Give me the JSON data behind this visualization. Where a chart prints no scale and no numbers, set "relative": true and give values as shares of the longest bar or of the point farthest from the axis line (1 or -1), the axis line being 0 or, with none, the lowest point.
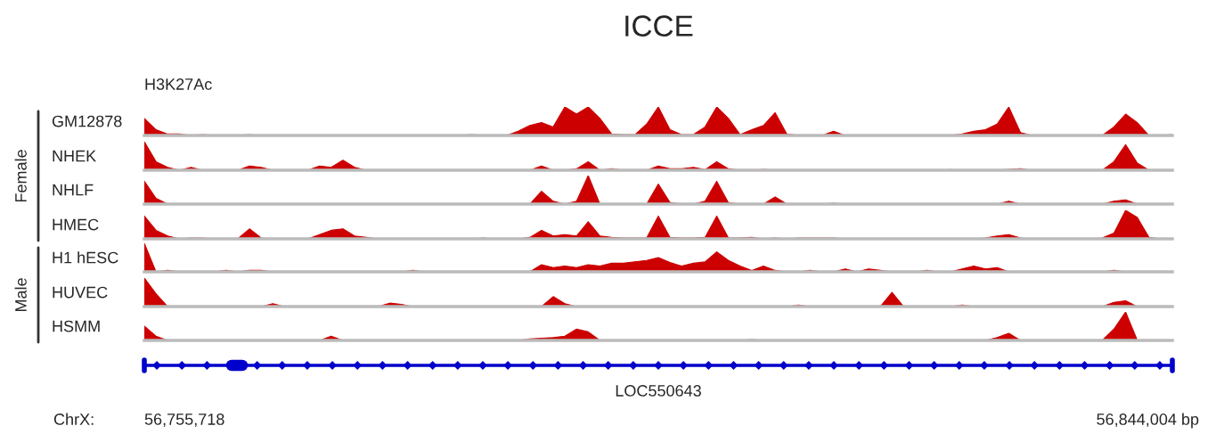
{
  "chart_data": [
    {
      "type": "area",
      "title": "ICCE",
      "subtitle": "H3K27Ac",
      "annotations": [
        "Female"
      ],
      "relative": true,
      "categories": [
        null,
        null,
        null,
        null,
        null,
        null,
        null,
        null,
        null,
        null,
        null,
        null,
        null,
        null,
        null,
        null,
        null,
        null,
        null,
        null,
        null,
        null,
        null,
        null,
        null,
        null,
        null,
        null,
        null,
        null,
        null,
        null,
        null,
        null,
        null,
        null,
        null,
        null,
        null,
        null,
        null,
        null,
        null,
        null,
        null,
        null,
        null,
        null,
        null,
        null,
        null,
        null,
        null,
        null,
        null,
        null,
        null,
        null,
        null,
        null,
        null,
        null,
        null,
        null,
        null,
        null,
        null,
        null,
        null,
        null,
        null,
        null,
        null,
        null,
        null,
        null,
        null,
        null,
        null,
        null,
        null,
        null,
        null,
        null,
        null,
        null,
        null,
        null,
        null
      ],
      "series": [
        {
          "name": "GM12878",
          "color": "#cc0000",
          "values": [
            0.6,
            0.2,
            0.05,
            0.05,
            0,
            0.03,
            0,
            0,
            0,
            0.03,
            0,
            0,
            0,
            0,
            0,
            0,
            0,
            0,
            0,
            0,
            0,
            0,
            0,
            0,
            0,
            0,
            0,
            0,
            0.03,
            0,
            0,
            0,
            0.15,
            0.35,
            0.45,
            0.3,
            1.0,
            0.75,
            1.0,
            0.6,
            0.05,
            0.03,
            0.03,
            0.4,
            1.0,
            0.2,
            0.03,
            0.03,
            0.3,
            1.0,
            0.6,
            0.03,
            0.2,
            0.35,
            0.8,
            0.05,
            0,
            0,
            0,
            0.15,
            0,
            0,
            0,
            0,
            0,
            0,
            0,
            0,
            0,
            0,
            0.05,
            0.15,
            0.2,
            0.4,
            1.0,
            0.1,
            0,
            0,
            0,
            0,
            0,
            0,
            0,
            0.3,
            0.75,
            0.45,
            0,
            0,
            0.03
          ]
        }
      ]
    },
    {
      "type": "area",
      "relative": true,
      "categories": [
        null,
        null,
        null,
        null,
        null,
        null,
        null,
        null,
        null,
        null,
        null,
        null,
        null,
        null,
        null,
        null,
        null,
        null,
        null,
        null,
        null,
        null,
        null,
        null,
        null,
        null,
        null,
        null,
        null,
        null,
        null,
        null,
        null,
        null,
        null,
        null,
        null,
        null,
        null,
        null,
        null,
        null,
        null,
        null,
        null,
        null,
        null,
        null,
        null,
        null,
        null,
        null,
        null,
        null,
        null,
        null,
        null,
        null,
        null,
        null,
        null,
        null,
        null,
        null,
        null,
        null,
        null,
        null,
        null,
        null,
        null,
        null,
        null,
        null,
        null,
        null,
        null,
        null,
        null,
        null,
        null,
        null,
        null,
        null,
        null,
        null,
        null,
        null,
        null
      ],
      "series": [
        {
          "name": "NHEK",
          "color": "#cc0000",
          "values": [
            1.0,
            0.3,
            0.1,
            0,
            0.1,
            0,
            0,
            0,
            0,
            0.15,
            0.1,
            0,
            0,
            0,
            0,
            0.15,
            0.1,
            0.35,
            0.1,
            0,
            0,
            0,
            0,
            0,
            0,
            0,
            0,
            0,
            0,
            0,
            0,
            0,
            0,
            0,
            0.15,
            0,
            0,
            0.05,
            0.3,
            0,
            0.05,
            0,
            0,
            0,
            0.15,
            0.05,
            0.05,
            0.1,
            0.02,
            0.3,
            0.05,
            0,
            0,
            0.03,
            0,
            0,
            0,
            0,
            0,
            0,
            0,
            0,
            0,
            0,
            0,
            0,
            0,
            0,
            0,
            0.02,
            0,
            0,
            0,
            0,
            0.03,
            0.05,
            0,
            0,
            0,
            0,
            0,
            0,
            0,
            0.3,
            0.9,
            0.25,
            0,
            0,
            0
          ]
        }
      ]
    },
    {
      "type": "area",
      "relative": true,
      "categories": [
        null,
        null,
        null,
        null,
        null,
        null,
        null,
        null,
        null,
        null,
        null,
        null,
        null,
        null,
        null,
        null,
        null,
        null,
        null,
        null,
        null,
        null,
        null,
        null,
        null,
        null,
        null,
        null,
        null,
        null,
        null,
        null,
        null,
        null,
        null,
        null,
        null,
        null,
        null,
        null,
        null,
        null,
        null,
        null,
        null,
        null,
        null,
        null,
        null,
        null,
        null,
        null,
        null,
        null,
        null,
        null,
        null,
        null,
        null,
        null,
        null,
        null,
        null,
        null,
        null,
        null,
        null,
        null,
        null,
        null,
        null,
        null,
        null,
        null,
        null,
        null,
        null,
        null,
        null,
        null,
        null,
        null,
        null,
        null,
        null,
        null,
        null,
        null,
        null
      ],
      "series": [
        {
          "name": "NHLF",
          "color": "#cc0000",
          "values": [
            0.8,
            0.2,
            0,
            0,
            0,
            0,
            0,
            0,
            0,
            0,
            0,
            0,
            0,
            0,
            0,
            0,
            0,
            0,
            0,
            0,
            0,
            0,
            0,
            0,
            0,
            0,
            0,
            0,
            0,
            0,
            0,
            0,
            0,
            0,
            0.45,
            0.1,
            0,
            0.1,
            1.0,
            0,
            0,
            0,
            0,
            0,
            0.7,
            0.05,
            0,
            0,
            0.1,
            0.8,
            0.05,
            0,
            0,
            0,
            0.25,
            0,
            0,
            0,
            0,
            0.03,
            0,
            0,
            0,
            0,
            0,
            0,
            0,
            0,
            0,
            0,
            0,
            0,
            0,
            0,
            0.1,
            0,
            0,
            0,
            0,
            0,
            0,
            0,
            0,
            0.1,
            0.15,
            0,
            0,
            0,
            0
          ]
        }
      ]
    },
    {
      "type": "area",
      "relative": true,
      "categories": [
        null,
        null,
        null,
        null,
        null,
        null,
        null,
        null,
        null,
        null,
        null,
        null,
        null,
        null,
        null,
        null,
        null,
        null,
        null,
        null,
        null,
        null,
        null,
        null,
        null,
        null,
        null,
        null,
        null,
        null,
        null,
        null,
        null,
        null,
        null,
        null,
        null,
        null,
        null,
        null,
        null,
        null,
        null,
        null,
        null,
        null,
        null,
        null,
        null,
        null,
        null,
        null,
        null,
        null,
        null,
        null,
        null,
        null,
        null,
        null,
        null,
        null,
        null,
        null,
        null,
        null,
        null,
        null,
        null,
        null,
        null,
        null,
        null,
        null,
        null,
        null,
        null,
        null,
        null,
        null,
        null,
        null,
        null,
        null,
        null,
        null,
        null,
        null,
        null
      ],
      "series": [
        {
          "name": "HMEC",
          "color": "#cc0000",
          "values": [
            0.8,
            0.3,
            0.1,
            0,
            0.03,
            0.03,
            0,
            0,
            0,
            0.35,
            0.03,
            0,
            0,
            0,
            0,
            0.15,
            0.3,
            0.35,
            0.1,
            0.05,
            0,
            0,
            0,
            0,
            0,
            0,
            0,
            0,
            0,
            0.03,
            0,
            0,
            0,
            0.05,
            0.3,
            0.1,
            0.15,
            0.1,
            0.6,
            0.1,
            0.05,
            0.03,
            0.03,
            0.03,
            0.8,
            0.05,
            0.03,
            0.03,
            0.05,
            0.8,
            0.03,
            0.03,
            0.05,
            0,
            0.03,
            0,
            0.03,
            0.03,
            0.03,
            0.03,
            0,
            0,
            0,
            0,
            0,
            0,
            0,
            0,
            0,
            0,
            0,
            0,
            0.03,
            0.1,
            0.15,
            0.03,
            0,
            0,
            0,
            0,
            0,
            0,
            0.03,
            0.2,
            1.0,
            0.75,
            0.05,
            0,
            0
          ]
        }
      ]
    },
    {
      "type": "area",
      "annotations": [
        "Male"
      ],
      "relative": true,
      "categories": [
        null,
        null,
        null,
        null,
        null,
        null,
        null,
        null,
        null,
        null,
        null,
        null,
        null,
        null,
        null,
        null,
        null,
        null,
        null,
        null,
        null,
        null,
        null,
        null,
        null,
        null,
        null,
        null,
        null,
        null,
        null,
        null,
        null,
        null,
        null,
        null,
        null,
        null,
        null,
        null,
        null,
        null,
        null,
        null,
        null,
        null,
        null,
        null,
        null,
        null,
        null,
        null,
        null,
        null,
        null,
        null,
        null,
        null,
        null,
        null,
        null,
        null,
        null,
        null,
        null,
        null,
        null,
        null,
        null,
        null,
        null,
        null,
        null,
        null,
        null,
        null,
        null,
        null,
        null,
        null,
        null,
        null,
        null,
        null,
        null,
        null,
        null,
        null,
        null
      ],
      "series": [
        {
          "name": "H1 hESC",
          "color": "#cc0000",
          "values": [
            1.0,
            0,
            0.05,
            0,
            0,
            0,
            0,
            0.05,
            0,
            0.05,
            0.05,
            0,
            0,
            0,
            0,
            0,
            0,
            0,
            0,
            0,
            0,
            0,
            0,
            0.05,
            0,
            0,
            0,
            0,
            0,
            0,
            0,
            0,
            0,
            0,
            0.25,
            0.15,
            0.2,
            0.15,
            0.25,
            0.2,
            0.3,
            0.3,
            0.35,
            0.4,
            0.5,
            0.33,
            0.2,
            0.3,
            0.35,
            0.7,
            0.4,
            0.2,
            0.05,
            0.2,
            0.05,
            0,
            0,
            0.05,
            0,
            0,
            0.1,
            0,
            0.1,
            0.05,
            0,
            0,
            0,
            0.05,
            0,
            0,
            0.1,
            0.2,
            0.1,
            0.15,
            0,
            0,
            0,
            0,
            0,
            0,
            0,
            0,
            0,
            0.05,
            0,
            0,
            0,
            0,
            0
          ]
        }
      ]
    },
    {
      "type": "area",
      "relative": true,
      "categories": [
        null,
        null,
        null,
        null,
        null,
        null,
        null,
        null,
        null,
        null,
        null,
        null,
        null,
        null,
        null,
        null,
        null,
        null,
        null,
        null,
        null,
        null,
        null,
        null,
        null,
        null,
        null,
        null,
        null,
        null,
        null,
        null,
        null,
        null,
        null,
        null,
        null,
        null,
        null,
        null,
        null,
        null,
        null,
        null,
        null,
        null,
        null,
        null,
        null,
        null,
        null,
        null,
        null,
        null,
        null,
        null,
        null,
        null,
        null,
        null,
        null,
        null,
        null,
        null,
        null,
        null,
        null,
        null,
        null,
        null,
        null,
        null,
        null,
        null,
        null,
        null,
        null,
        null,
        null,
        null,
        null,
        null,
        null,
        null,
        null,
        null,
        null,
        null,
        null
      ],
      "series": [
        {
          "name": "HUVEC",
          "color": "#cc0000",
          "values": [
            1.0,
            0.45,
            0,
            0,
            0,
            0,
            0,
            0,
            0,
            0,
            0,
            0.1,
            0,
            0,
            0,
            0,
            0,
            0,
            0,
            0,
            0,
            0.12,
            0.08,
            0,
            0,
            0,
            0,
            0,
            0,
            0,
            0,
            0,
            0,
            0,
            0,
            0.35,
            0.1,
            0,
            0,
            0,
            0,
            0,
            0,
            0,
            0,
            0,
            0,
            0,
            0,
            0,
            0,
            0,
            0,
            0,
            0,
            0,
            0.05,
            0,
            0,
            0,
            0,
            0,
            0,
            0,
            0.5,
            0,
            0,
            0,
            0,
            0,
            0.05,
            0,
            0,
            0,
            0,
            0,
            0,
            0,
            0,
            0,
            0,
            0,
            0,
            0.15,
            0.2,
            0,
            0,
            0,
            0
          ]
        }
      ]
    },
    {
      "type": "area",
      "annotations": [
        "LOC550643",
        "ChrX:",
        "56,755,718",
        "56,844,004 bp"
      ],
      "relative": true,
      "categories": [
        null,
        null,
        null,
        null,
        null,
        null,
        null,
        null,
        null,
        null,
        null,
        null,
        null,
        null,
        null,
        null,
        null,
        null,
        null,
        null,
        null,
        null,
        null,
        null,
        null,
        null,
        null,
        null,
        null,
        null,
        null,
        null,
        null,
        null,
        null,
        null,
        null,
        null,
        null,
        null,
        null,
        null,
        null,
        null,
        null,
        null,
        null,
        null,
        null,
        null,
        null,
        null,
        null,
        null,
        null,
        null,
        null,
        null,
        null,
        null,
        null,
        null,
        null,
        null,
        null,
        null,
        null,
        null,
        null,
        null,
        null,
        null,
        null,
        null,
        null,
        null,
        null,
        null,
        null,
        null,
        null,
        null,
        null,
        null,
        null,
        null,
        null,
        null,
        null
      ],
      "series": [
        {
          "name": "HSMM",
          "color": "#cc0000",
          "values": [
            0.5,
            0.15,
            0,
            0,
            0,
            0,
            0,
            0,
            0,
            0,
            0,
            0,
            0,
            0,
            0,
            0,
            0.15,
            0,
            0,
            0,
            0,
            0,
            0,
            0,
            0,
            0,
            0,
            0,
            0,
            0,
            0,
            0,
            0,
            0.05,
            0.08,
            0.1,
            0.15,
            0.4,
            0.3,
            0,
            0,
            0,
            0,
            0,
            0,
            0,
            0,
            0,
            0,
            0,
            0,
            0,
            0.03,
            0,
            0,
            0,
            0,
            0,
            0,
            0,
            0,
            0,
            0,
            0,
            0,
            0,
            0,
            0,
            0,
            0,
            0,
            0,
            0,
            0.1,
            0.25,
            0,
            0,
            0,
            0,
            0,
            0,
            0,
            0,
            0.4,
            1.0,
            0,
            0,
            0,
            0
          ]
        }
      ]
    }
  ]
}
